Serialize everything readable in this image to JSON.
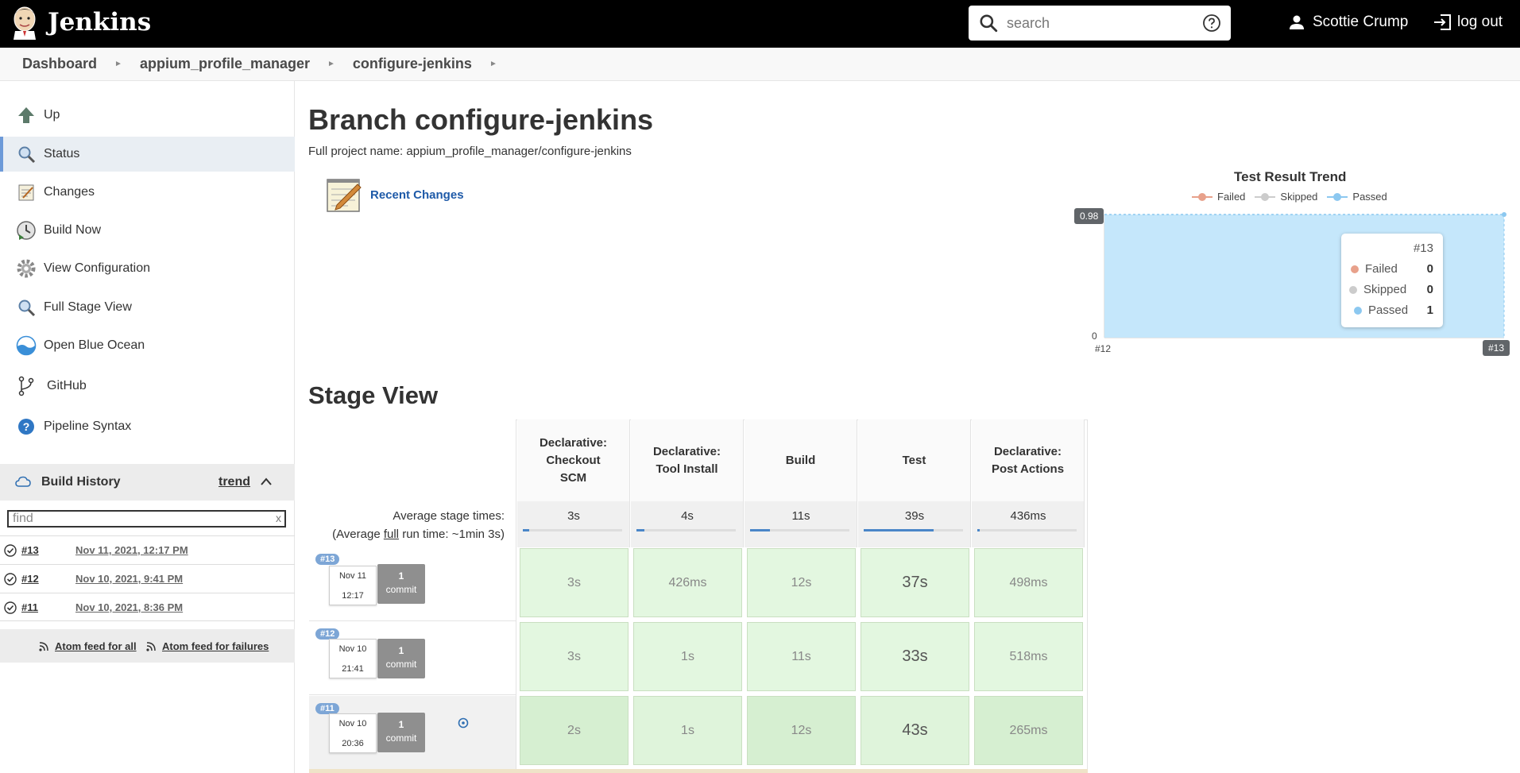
{
  "app": {
    "name": "Jenkins",
    "search_placeholder": "search",
    "user_name": "Scottie Crump",
    "logout_label": "log out"
  },
  "breadcrumb": [
    "Dashboard",
    "appium_profile_manager",
    "configure-jenkins"
  ],
  "sidebar": {
    "items": [
      {
        "label": "Up",
        "icon": "up-arrow-icon"
      },
      {
        "label": "Status",
        "icon": "magnifier-icon"
      },
      {
        "label": "Changes",
        "icon": "notepad-icon"
      },
      {
        "label": "Build Now",
        "icon": "clock-play-icon"
      },
      {
        "label": "View Configuration",
        "icon": "gear-icon"
      },
      {
        "label": "Full Stage View",
        "icon": "magnifier-icon"
      },
      {
        "label": "Open Blue Ocean",
        "icon": "blue-ocean-icon"
      },
      {
        "label": "GitHub",
        "icon": "branch-icon"
      },
      {
        "label": "Pipeline Syntax",
        "icon": "help-icon"
      }
    ],
    "build_history": {
      "title": "Build History",
      "trend_label": "trend",
      "find_placeholder": "find",
      "find_clear": "x",
      "builds": [
        {
          "number": "#13",
          "date": "Nov 11, 2021, 12:17 PM"
        },
        {
          "number": "#12",
          "date": "Nov 10, 2021, 9:41 PM"
        },
        {
          "number": "#11",
          "date": "Nov 10, 2021, 8:36 PM"
        }
      ],
      "feed_all": "Atom feed for all",
      "feed_failures": "Atom feed for failures"
    }
  },
  "main": {
    "title": "Branch configure-jenkins",
    "full_project_name": "Full project name: appium_profile_manager/configure-jenkins",
    "recent_changes": "Recent Changes",
    "stage_view_title": "Stage View"
  },
  "chart_data": {
    "type": "area",
    "title": "Test Result Trend",
    "legend": [
      "Failed",
      "Skipped",
      "Passed"
    ],
    "legend_colors": [
      "#e8a18b",
      "#cccccc",
      "#8cc8f0"
    ],
    "x": [
      "#12",
      "#13"
    ],
    "series": [
      {
        "name": "Failed",
        "values": [
          0,
          0
        ]
      },
      {
        "name": "Skipped",
        "values": [
          0,
          0
        ]
      },
      {
        "name": "Passed",
        "values": [
          1,
          1
        ]
      }
    ],
    "y_max_label": "0.98",
    "y_min_label": "0",
    "tooltip": {
      "build": "#13",
      "rows": [
        [
          "Failed",
          "0"
        ],
        [
          "Skipped",
          "0"
        ],
        [
          "Passed",
          "1"
        ]
      ]
    }
  },
  "stage_view": {
    "columns": [
      "Declarative: Checkout SCM",
      "Declarative: Tool Install",
      "Build",
      "Test",
      "Declarative: Post Actions"
    ],
    "avg_label": "Average stage times:",
    "avg_full_prefix": "(Average ",
    "avg_full_link": "full",
    "avg_full_suffix": " run time: ~1min 3s)",
    "avg_times": [
      "3s",
      "4s",
      "11s",
      "39s",
      "436ms"
    ],
    "avg_fill": [
      0.06,
      0.08,
      0.2,
      0.7,
      0.02
    ],
    "rows": [
      {
        "build": "#13",
        "date": "Nov 11",
        "time": "12:17",
        "commits": "1",
        "commit_label": "commit",
        "times": [
          "3s",
          "426ms",
          "12s",
          "37s",
          "498ms"
        ]
      },
      {
        "build": "#12",
        "date": "Nov 10",
        "time": "21:41",
        "commits": "1",
        "commit_label": "commit",
        "times": [
          "3s",
          "1s",
          "11s",
          "33s",
          "518ms"
        ]
      },
      {
        "build": "#11",
        "date": "Nov 10",
        "time": "20:36",
        "commits": "1",
        "commit_label": "commit",
        "times": [
          "2s",
          "1s",
          "12s",
          "43s",
          "265ms"
        ]
      }
    ]
  }
}
